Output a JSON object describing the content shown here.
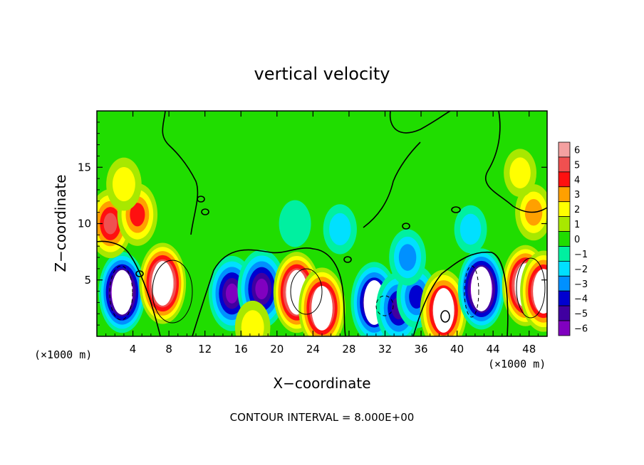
{
  "chart_data": {
    "type": "heatmap",
    "title": "vertical velocity",
    "xlabel": "X−coordinate",
    "ylabel": "Z−coordinate",
    "x_unit_left": "(×1000 m)",
    "x_unit_right": "(×1000 m)",
    "xlim": [
      0,
      50
    ],
    "ylim": [
      0,
      20
    ],
    "xticks": [
      "4",
      "8",
      "12",
      "16",
      "20",
      "24",
      "28",
      "32",
      "36",
      "40",
      "44",
      "48"
    ],
    "xtick_values": [
      4,
      8,
      12,
      16,
      20,
      24,
      28,
      32,
      36,
      40,
      44,
      48
    ],
    "yticks": [
      "5",
      "10",
      "15"
    ],
    "ytick_values": [
      5,
      10,
      15
    ],
    "colorbar": {
      "levels": [
        6,
        5,
        4,
        3,
        2,
        1,
        0,
        -1,
        -2,
        -3,
        -4,
        -5,
        -6
      ],
      "labels": [
        "6",
        "5",
        "4",
        "3",
        "2",
        "1",
        "0",
        "−1",
        "−2",
        "−3",
        "−4",
        "−5",
        "−6"
      ],
      "colors": [
        "#f4a0a0",
        "#f05050",
        "#ff1010",
        "#ffa000",
        "#ffff00",
        "#a8e800",
        "#20dd00",
        "#00f0a0",
        "#00e0ff",
        "#0090ff",
        "#0000d0",
        "#4000a0",
        "#8000c0"
      ]
    },
    "cells": [
      {
        "x": 2.8,
        "z": 3.9,
        "w": -9
      },
      {
        "x": 7.3,
        "z": 4.7,
        "w": 9
      },
      {
        "x": 15.0,
        "z": 3.8,
        "w": -5.5
      },
      {
        "x": 18.3,
        "z": 4.2,
        "w": -6
      },
      {
        "x": 17.3,
        "z": 0.8,
        "w": 2
      },
      {
        "x": 22.2,
        "z": 3.9,
        "w": 9
      },
      {
        "x": 25.0,
        "z": 2.5,
        "w": 8
      },
      {
        "x": 30.8,
        "z": 3.0,
        "w": -7
      },
      {
        "x": 33.5,
        "z": 2.5,
        "w": -5
      },
      {
        "x": 35.5,
        "z": 3.5,
        "w": -3.5
      },
      {
        "x": 38.5,
        "z": 2.3,
        "w": 7
      },
      {
        "x": 42.7,
        "z": 4.2,
        "w": -9
      },
      {
        "x": 47.6,
        "z": 4.5,
        "w": 9
      },
      {
        "x": 49.6,
        "z": 4.0,
        "w": 8
      },
      {
        "x": 1.5,
        "z": 10.0,
        "w": 4.5
      },
      {
        "x": 4.5,
        "z": 10.8,
        "w": 3.5
      },
      {
        "x": 3.0,
        "z": 13.5,
        "w": 2
      },
      {
        "x": 48.5,
        "z": 11.0,
        "w": 2.5
      },
      {
        "x": 47.0,
        "z": 14.5,
        "w": 1.2
      },
      {
        "x": 27.0,
        "z": 9.5,
        "w": -1.5
      },
      {
        "x": 22.0,
        "z": 10.0,
        "w": -1
      },
      {
        "x": 41.5,
        "z": 9.5,
        "w": -1.2
      },
      {
        "x": 34.5,
        "z": 7.0,
        "w": -2.5
      }
    ],
    "contour_interval": "CONTOUR INTERVAL = 8.000E+00",
    "grid": false,
    "legend": "colorbar-right"
  }
}
